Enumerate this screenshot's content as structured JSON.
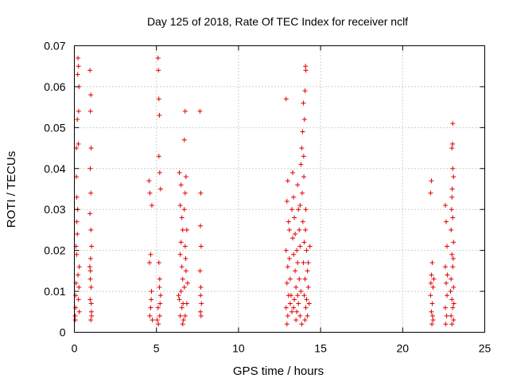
{
  "chart_data": {
    "type": "scatter",
    "title": "Day 125 of 2018, Rate Of TEC Index for receiver nclf",
    "xlabel": "GPS time / hours",
    "ylabel": "ROTI / TECUs",
    "xlim": [
      0,
      25
    ],
    "ylim": [
      0,
      0.07
    ],
    "xticks": [
      0,
      5,
      10,
      15,
      20,
      25
    ],
    "xtick_labels": [
      "0",
      "5",
      "10",
      "15",
      "20",
      "25"
    ],
    "yticks": [
      0,
      0.01,
      0.02,
      0.03,
      0.04,
      0.05,
      0.06,
      0.07
    ],
    "ytick_labels": [
      "0",
      "0.01",
      "0.02",
      "0.03",
      "0.04",
      "0.05",
      "0.06",
      "0.07"
    ],
    "grid": true,
    "marker": "plus",
    "color": "#e00000",
    "series": [
      {
        "name": "ROTI",
        "points": [
          [
            0.05,
            0.004
          ],
          [
            0.08,
            0.006
          ],
          [
            0.1,
            0.021
          ],
          [
            0.12,
            0.045
          ],
          [
            0.15,
            0.033
          ],
          [
            0.18,
            0.052
          ],
          [
            0.2,
            0.063
          ],
          [
            0.22,
            0.067
          ],
          [
            0.25,
            0.065
          ],
          [
            0.28,
            0.06
          ],
          [
            0.3,
            0.016
          ],
          [
            0.2,
            0.03
          ],
          [
            0.15,
            0.027
          ],
          [
            0.1,
            0.012
          ],
          [
            0.25,
            0.008
          ],
          [
            0.3,
            0.005
          ],
          [
            0.22,
            0.014
          ],
          [
            0.18,
            0.024
          ],
          [
            0.12,
            0.038
          ],
          [
            0.08,
            0.009
          ],
          [
            0.26,
            0.054
          ],
          [
            0.24,
            0.046
          ],
          [
            0.14,
            0.019
          ],
          [
            0.06,
            0.003
          ],
          [
            0.28,
            0.011
          ],
          [
            0.95,
            0.064
          ],
          [
            1.0,
            0.058
          ],
          [
            0.98,
            0.054
          ],
          [
            1.02,
            0.045
          ],
          [
            0.97,
            0.04
          ],
          [
            1.0,
            0.034
          ],
          [
            0.95,
            0.029
          ],
          [
            1.05,
            0.021
          ],
          [
            0.98,
            0.015
          ],
          [
            1.02,
            0.011
          ],
          [
            0.96,
            0.008
          ],
          [
            1.04,
            0.005
          ],
          [
            1.0,
            0.003
          ],
          [
            0.99,
            0.018
          ],
          [
            1.01,
            0.025
          ],
          [
            0.97,
            0.013
          ],
          [
            1.03,
            0.007
          ],
          [
            0.94,
            0.016
          ],
          [
            1.05,
            0.004
          ],
          [
            4.55,
            0.037
          ],
          [
            4.6,
            0.034
          ],
          [
            4.65,
            0.019
          ],
          [
            4.7,
            0.01
          ],
          [
            4.65,
            0.006
          ],
          [
            4.6,
            0.004
          ],
          [
            4.72,
            0.031
          ],
          [
            4.68,
            0.008
          ],
          [
            4.75,
            0.003
          ],
          [
            4.58,
            0.017
          ],
          [
            5.1,
            0.067
          ],
          [
            5.12,
            0.064
          ],
          [
            5.15,
            0.057
          ],
          [
            5.18,
            0.053
          ],
          [
            5.15,
            0.043
          ],
          [
            5.2,
            0.039
          ],
          [
            5.25,
            0.035
          ],
          [
            5.15,
            0.017
          ],
          [
            5.2,
            0.013
          ],
          [
            5.25,
            0.009
          ],
          [
            5.1,
            0.006
          ],
          [
            5.2,
            0.004
          ],
          [
            5.05,
            0.003
          ],
          [
            5.22,
            0.007
          ],
          [
            5.18,
            0.011
          ],
          [
            5.12,
            0.002
          ],
          [
            6.4,
            0.039
          ],
          [
            6.5,
            0.036
          ],
          [
            6.45,
            0.031
          ],
          [
            6.55,
            0.028
          ],
          [
            6.6,
            0.025
          ],
          [
            6.5,
            0.022
          ],
          [
            6.45,
            0.019
          ],
          [
            6.55,
            0.016
          ],
          [
            6.6,
            0.013
          ],
          [
            6.5,
            0.01
          ],
          [
            6.4,
            0.008
          ],
          [
            6.55,
            0.006
          ],
          [
            6.45,
            0.004
          ],
          [
            6.6,
            0.002
          ],
          [
            6.35,
            0.009
          ],
          [
            6.75,
            0.054
          ],
          [
            6.7,
            0.047
          ],
          [
            6.8,
            0.038
          ],
          [
            6.75,
            0.034
          ],
          [
            6.7,
            0.03
          ],
          [
            6.85,
            0.025
          ],
          [
            6.75,
            0.021
          ],
          [
            6.8,
            0.015
          ],
          [
            6.7,
            0.011
          ],
          [
            6.85,
            0.007
          ],
          [
            6.75,
            0.004
          ],
          [
            6.65,
            0.003
          ],
          [
            6.9,
            0.012
          ],
          [
            6.78,
            0.018
          ],
          [
            6.62,
            0.007
          ],
          [
            7.65,
            0.054
          ],
          [
            7.7,
            0.034
          ],
          [
            7.68,
            0.026
          ],
          [
            7.72,
            0.021
          ],
          [
            7.66,
            0.015
          ],
          [
            7.7,
            0.011
          ],
          [
            7.74,
            0.007
          ],
          [
            7.68,
            0.005
          ],
          [
            7.72,
            0.004
          ],
          [
            7.69,
            0.009
          ],
          [
            12.9,
            0.057
          ],
          [
            13.0,
            0.037
          ],
          [
            12.95,
            0.032
          ],
          [
            13.05,
            0.027
          ],
          [
            12.9,
            0.02
          ],
          [
            13.0,
            0.016
          ],
          [
            12.95,
            0.012
          ],
          [
            13.05,
            0.009
          ],
          [
            12.9,
            0.006
          ],
          [
            13.0,
            0.004
          ],
          [
            12.95,
            0.002
          ],
          [
            13.1,
            0.018
          ],
          [
            13.15,
            0.013
          ],
          [
            13.2,
            0.009
          ],
          [
            13.25,
            0.005
          ],
          [
            13.3,
            0.039
          ],
          [
            13.35,
            0.033
          ],
          [
            13.4,
            0.028
          ],
          [
            13.3,
            0.023
          ],
          [
            13.35,
            0.019
          ],
          [
            13.45,
            0.015
          ],
          [
            13.5,
            0.011
          ],
          [
            13.4,
            0.008
          ],
          [
            13.55,
            0.005
          ],
          [
            13.5,
            0.003
          ],
          [
            13.6,
            0.036
          ],
          [
            13.65,
            0.03
          ],
          [
            13.7,
            0.025
          ],
          [
            13.75,
            0.021
          ],
          [
            13.6,
            0.017
          ],
          [
            13.7,
            0.013
          ],
          [
            13.8,
            0.01
          ],
          [
            13.65,
            0.007
          ],
          [
            13.75,
            0.004
          ],
          [
            13.85,
            0.002
          ],
          [
            13.8,
            0.041
          ],
          [
            13.85,
            0.045
          ],
          [
            13.9,
            0.049
          ],
          [
            13.95,
            0.056
          ],
          [
            13.88,
            0.034
          ],
          [
            13.92,
            0.027
          ],
          [
            14.0,
            0.022
          ],
          [
            13.95,
            0.017
          ],
          [
            14.05,
            0.013
          ],
          [
            14.0,
            0.009
          ],
          [
            14.1,
            0.006
          ],
          [
            14.05,
            0.003
          ],
          [
            14.15,
            0.02
          ],
          [
            14.2,
            0.015
          ],
          [
            14.25,
            0.011
          ],
          [
            14.3,
            0.007
          ],
          [
            14.2,
            0.004
          ],
          [
            14.35,
            0.021
          ],
          [
            14.1,
            0.03
          ],
          [
            13.98,
            0.038
          ],
          [
            14.02,
            0.052
          ],
          [
            14.05,
            0.059
          ],
          [
            14.08,
            0.065
          ],
          [
            14.1,
            0.064
          ],
          [
            13.97,
            0.043
          ],
          [
            14.08,
            0.025
          ],
          [
            13.45,
            0.024
          ],
          [
            13.25,
            0.03
          ],
          [
            13.55,
            0.02
          ],
          [
            13.1,
            0.025
          ],
          [
            13.75,
            0.031
          ],
          [
            14.25,
            0.017
          ],
          [
            13.15,
            0.007
          ],
          [
            13.35,
            0.006
          ],
          [
            14.15,
            0.008
          ],
          [
            13.6,
            0.009
          ],
          [
            21.75,
            0.037
          ],
          [
            21.7,
            0.034
          ],
          [
            21.8,
            0.017
          ],
          [
            21.75,
            0.014
          ],
          [
            21.85,
            0.011
          ],
          [
            21.7,
            0.009
          ],
          [
            21.8,
            0.007
          ],
          [
            21.75,
            0.005
          ],
          [
            21.85,
            0.003
          ],
          [
            21.78,
            0.002
          ],
          [
            21.9,
            0.013
          ],
          [
            21.72,
            0.012
          ],
          [
            21.82,
            0.004
          ],
          [
            22.6,
            0.031
          ],
          [
            22.65,
            0.027
          ],
          [
            22.7,
            0.021
          ],
          [
            22.6,
            0.016
          ],
          [
            22.65,
            0.012
          ],
          [
            22.7,
            0.009
          ],
          [
            22.6,
            0.006
          ],
          [
            22.68,
            0.004
          ],
          [
            22.62,
            0.002
          ],
          [
            22.72,
            0.014
          ],
          [
            23.05,
            0.051
          ],
          [
            23.0,
            0.045
          ],
          [
            23.05,
            0.04
          ],
          [
            23.1,
            0.038
          ],
          [
            23.0,
            0.033
          ],
          [
            23.05,
            0.028
          ],
          [
            22.95,
            0.025
          ],
          [
            23.1,
            0.022
          ],
          [
            23.0,
            0.019
          ],
          [
            23.05,
            0.016
          ],
          [
            22.95,
            0.013
          ],
          [
            23.1,
            0.011
          ],
          [
            23.0,
            0.008
          ],
          [
            23.05,
            0.006
          ],
          [
            22.95,
            0.004
          ],
          [
            23.1,
            0.003
          ],
          [
            23.0,
            0.002
          ],
          [
            23.08,
            0.018
          ],
          [
            22.98,
            0.03
          ],
          [
            23.02,
            0.035
          ],
          [
            23.04,
            0.046
          ],
          [
            22.92,
            0.01
          ],
          [
            23.12,
            0.007
          ]
        ]
      }
    ]
  }
}
